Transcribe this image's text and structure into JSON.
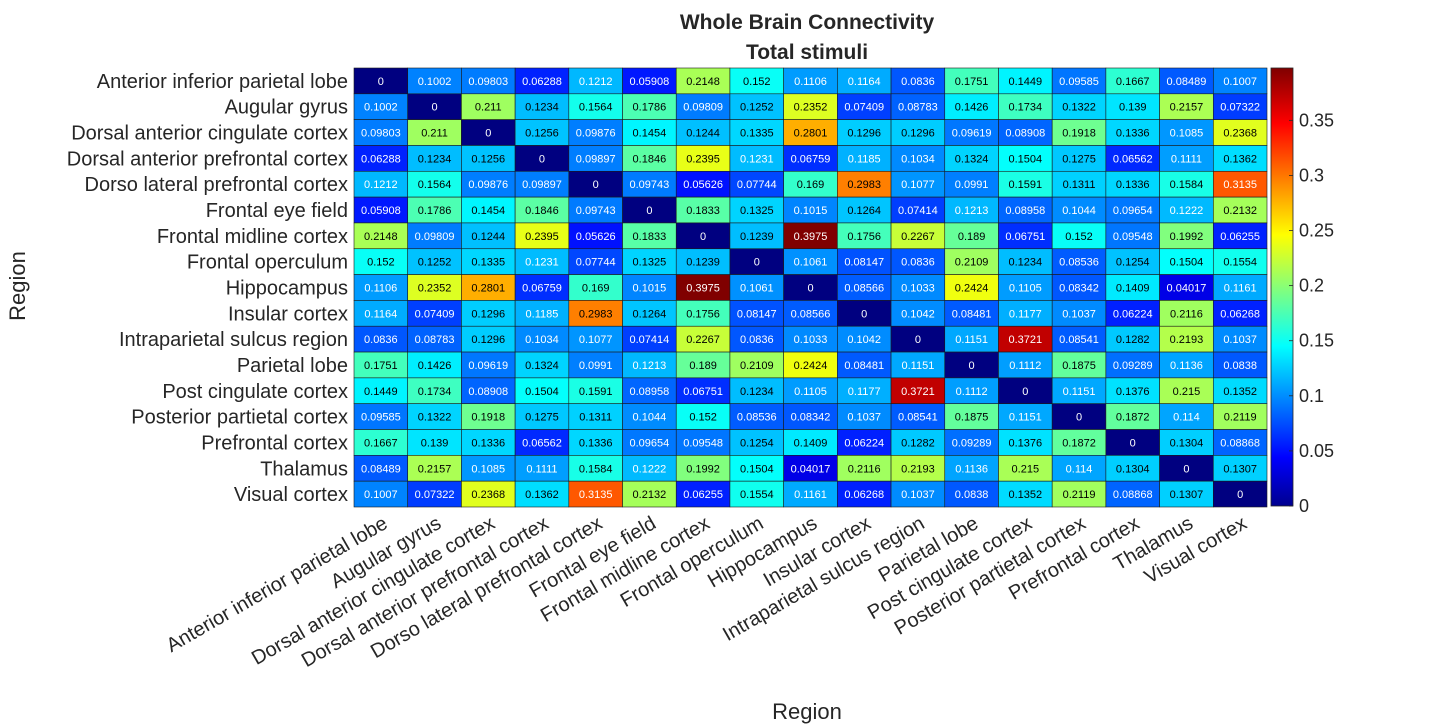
{
  "chart_data": {
    "type": "heatmap",
    "title": "Whole Brain Connectivity",
    "subtitle": "Total stimuli",
    "xlabel": "Region",
    "ylabel": "Region",
    "colormap": "jet",
    "clim": [
      0,
      0.3975
    ],
    "colorbar_ticks": [
      "0",
      "0.05",
      "0.1",
      "0.15",
      "0.2",
      "0.25",
      "0.3",
      "0.35"
    ],
    "colorbar_tick_values": [
      0,
      0.05,
      0.1,
      0.15,
      0.2,
      0.25,
      0.3,
      0.35
    ],
    "labels": [
      "Anterior inferior parietal lobe",
      "Augular gyrus",
      "Dorsal anterior cingulate cortex",
      "Dorsal anterior prefrontal cortex",
      "Dorso lateral prefrontal cortex",
      "Frontal eye field",
      "Frontal midline cortex",
      "Frontal operculum",
      "Hippocampus",
      "Insular cortex",
      "Intraparietal sulcus region",
      "Parietal lobe",
      "Post cingulate cortex",
      "Posterior partietal cortex",
      "Prefrontal cortex",
      "Thalamus",
      "Visual cortex"
    ],
    "values": [
      [
        "0",
        "0.1002",
        "0.09803",
        "0.06288",
        "0.1212",
        "0.05908",
        "0.2148",
        "0.152",
        "0.1106",
        "0.1164",
        "0.0836",
        "0.1751",
        "0.1449",
        "0.09585",
        "0.1667",
        "0.08489",
        "0.1007"
      ],
      [
        "0.1002",
        "0",
        "0.211",
        "0.1234",
        "0.1564",
        "0.1786",
        "0.09809",
        "0.1252",
        "0.2352",
        "0.07409",
        "0.08783",
        "0.1426",
        "0.1734",
        "0.1322",
        "0.139",
        "0.2157",
        "0.07322"
      ],
      [
        "0.09803",
        "0.211",
        "0",
        "0.1256",
        "0.09876",
        "0.1454",
        "0.1244",
        "0.1335",
        "0.2801",
        "0.1296",
        "0.1296",
        "0.09619",
        "0.08908",
        "0.1918",
        "0.1336",
        "0.1085",
        "0.2368"
      ],
      [
        "0.06288",
        "0.1234",
        "0.1256",
        "0",
        "0.09897",
        "0.1846",
        "0.2395",
        "0.1231",
        "0.06759",
        "0.1185",
        "0.1034",
        "0.1324",
        "0.1504",
        "0.1275",
        "0.06562",
        "0.1111",
        "0.1362"
      ],
      [
        "0.1212",
        "0.1564",
        "0.09876",
        "0.09897",
        "0",
        "0.09743",
        "0.05626",
        "0.07744",
        "0.169",
        "0.2983",
        "0.1077",
        "0.0991",
        "0.1591",
        "0.1311",
        "0.1336",
        "0.1584",
        "0.3135"
      ],
      [
        "0.05908",
        "0.1786",
        "0.1454",
        "0.1846",
        "0.09743",
        "0",
        "0.1833",
        "0.1325",
        "0.1015",
        "0.1264",
        "0.07414",
        "0.1213",
        "0.08958",
        "0.1044",
        "0.09654",
        "0.1222",
        "0.2132"
      ],
      [
        "0.2148",
        "0.09809",
        "0.1244",
        "0.2395",
        "0.05626",
        "0.1833",
        "0",
        "0.1239",
        "0.3975",
        "0.1756",
        "0.2267",
        "0.189",
        "0.06751",
        "0.152",
        "0.09548",
        "0.1992",
        "0.06255"
      ],
      [
        "0.152",
        "0.1252",
        "0.1335",
        "0.1231",
        "0.07744",
        "0.1325",
        "0.1239",
        "0",
        "0.1061",
        "0.08147",
        "0.0836",
        "0.2109",
        "0.1234",
        "0.08536",
        "0.1254",
        "0.1504",
        "0.1554"
      ],
      [
        "0.1106",
        "0.2352",
        "0.2801",
        "0.06759",
        "0.169",
        "0.1015",
        "0.3975",
        "0.1061",
        "0",
        "0.08566",
        "0.1033",
        "0.2424",
        "0.1105",
        "0.08342",
        "0.1409",
        "0.04017",
        "0.1161"
      ],
      [
        "0.1164",
        "0.07409",
        "0.1296",
        "0.1185",
        "0.2983",
        "0.1264",
        "0.1756",
        "0.08147",
        "0.08566",
        "0",
        "0.1042",
        "0.08481",
        "0.1177",
        "0.1037",
        "0.06224",
        "0.2116",
        "0.06268"
      ],
      [
        "0.0836",
        "0.08783",
        "0.1296",
        "0.1034",
        "0.1077",
        "0.07414",
        "0.2267",
        "0.0836",
        "0.1033",
        "0.1042",
        "0",
        "0.1151",
        "0.3721",
        "0.08541",
        "0.1282",
        "0.2193",
        "0.1037"
      ],
      [
        "0.1751",
        "0.1426",
        "0.09619",
        "0.1324",
        "0.0991",
        "0.1213",
        "0.189",
        "0.2109",
        "0.2424",
        "0.08481",
        "0.1151",
        "0",
        "0.1112",
        "0.1875",
        "0.09289",
        "0.1136",
        "0.0838"
      ],
      [
        "0.1449",
        "0.1734",
        "0.08908",
        "0.1504",
        "0.1591",
        "0.08958",
        "0.06751",
        "0.1234",
        "0.1105",
        "0.1177",
        "0.3721",
        "0.1112",
        "0",
        "0.1151",
        "0.1376",
        "0.215",
        "0.1352"
      ],
      [
        "0.09585",
        "0.1322",
        "0.1918",
        "0.1275",
        "0.1311",
        "0.1044",
        "0.152",
        "0.08536",
        "0.08342",
        "0.1037",
        "0.08541",
        "0.1875",
        "0.1151",
        "0",
        "0.1872",
        "0.114",
        "0.2119"
      ],
      [
        "0.1667",
        "0.139",
        "0.1336",
        "0.06562",
        "0.1336",
        "0.09654",
        "0.09548",
        "0.1254",
        "0.1409",
        "0.06224",
        "0.1282",
        "0.09289",
        "0.1376",
        "0.1872",
        "0",
        "0.1304",
        "0.08868"
      ],
      [
        "0.08489",
        "0.2157",
        "0.1085",
        "0.1111",
        "0.1584",
        "0.1222",
        "0.1992",
        "0.1504",
        "0.04017",
        "0.2116",
        "0.2193",
        "0.1136",
        "0.215",
        "0.114",
        "0.1304",
        "0",
        "0.1307"
      ],
      [
        "0.1007",
        "0.07322",
        "0.2368",
        "0.1362",
        "0.3135",
        "0.2132",
        "0.06255",
        "0.1554",
        "0.1161",
        "0.06268",
        "0.1037",
        "0.0838",
        "0.1352",
        "0.2119",
        "0.08868",
        "0.1307",
        "0"
      ]
    ]
  }
}
